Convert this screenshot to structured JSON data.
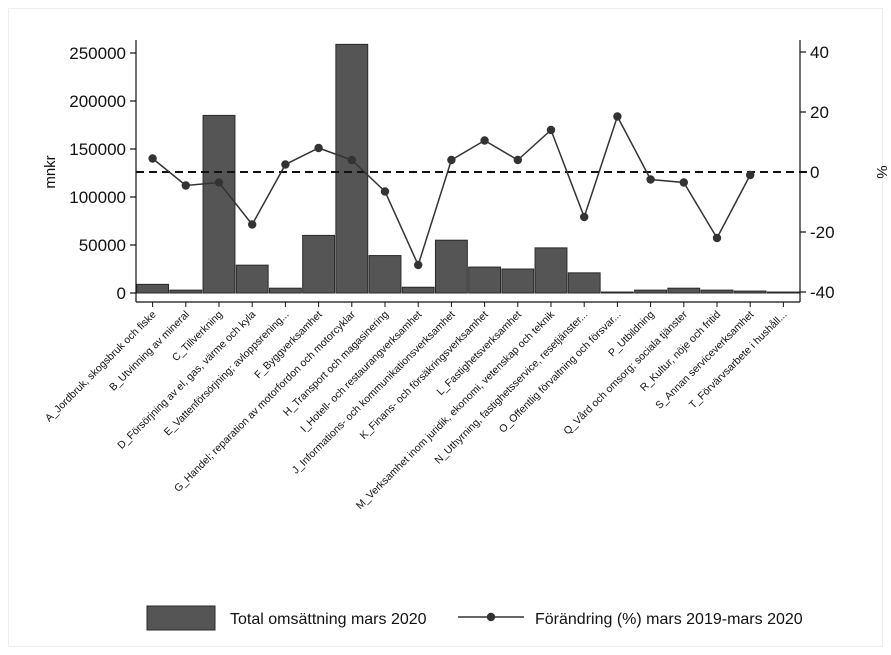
{
  "chart_data": {
    "type": "bar",
    "categories": [
      "A_Jordbruk, skogsbruk och fiske",
      "B_Utvinning av mineral",
      "C_Tillverkning",
      "D_Försörjning av el, gas, värme och kyla",
      "E_Vattenförsörjning; avloppsrening...",
      "F_Byggverksamhet",
      "G_Handel; reparation av motorfordon och motorcyklar",
      "H_Transport och magasinering",
      "I_Hotell- och restaurangverksamhet",
      "J_Informations- och kommunikationsverksamhet",
      "K_Finans- och försäkringsverksamhet",
      "L_Fastighetsverksamhet",
      "M_Verksamhet inom juridik, ekonomi, vetenskap och teknik",
      "N_Uthyrning, fastighetsservice, resetjänster...",
      "O_Offentlig förvaltning och försvar...",
      "P_Utbildning",
      "Q_Vård och omsorg; sociala tjänster",
      "R_Kultur, nöje och fritid",
      "S_Annan serviceverksamhet",
      "T_Förvärvsarbete i hushåll..."
    ],
    "series": [
      {
        "name": "Total omsättning mars 2020",
        "type": "bar",
        "axis": "left",
        "values": [
          9000,
          3000,
          185000,
          29000,
          5000,
          60000,
          259000,
          39000,
          6000,
          55000,
          27000,
          25000,
          47000,
          21000,
          1000,
          3000,
          5000,
          3000,
          2000,
          1000
        ]
      },
      {
        "name": "Förändring (%) mars 2019-mars 2020",
        "type": "line",
        "axis": "right",
        "values": [
          4.5,
          -4.5,
          -3.5,
          -17.5,
          2.5,
          8,
          4,
          -6.5,
          -31,
          4,
          10.5,
          4,
          14,
          -15,
          18.5,
          -2.5,
          -3.5,
          -22,
          -1,
          null
        ]
      }
    ],
    "ylabel": "mnkr",
    "y2label": "%",
    "ylim": [
      0,
      270000
    ],
    "y2lim": [
      -40,
      45
    ],
    "yticks": [
      "0",
      "50000",
      "100000",
      "150000",
      "200000",
      "250000"
    ],
    "y2ticks": [
      "-40",
      "-20",
      "0",
      "20",
      "40"
    ],
    "reference_line": {
      "axis": "right",
      "value": 0,
      "style": "dashed"
    },
    "legend_position": "bottom",
    "colors": {
      "bar": "#555555",
      "line": "#333333",
      "bar_edge": "#2a2a2a"
    }
  }
}
